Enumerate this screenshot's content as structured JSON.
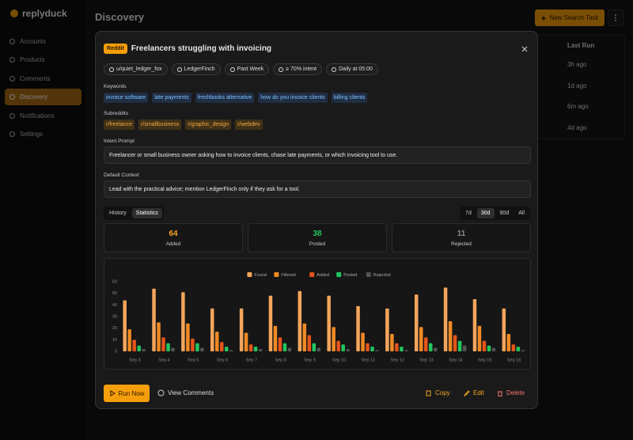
{
  "sidebar": {
    "brand": "replyduck",
    "nav": [
      "Accounts",
      "Products",
      "Comments",
      "Discovery",
      "Notifications",
      "Settings"
    ],
    "active": "Discovery"
  },
  "header": {
    "title": "Discovery",
    "new_button": "New Search Task"
  },
  "table": {
    "column": "Last Run",
    "rows": [
      "3h ago",
      "1d ago",
      "6m ago",
      "4d ago"
    ]
  },
  "modal": {
    "platform": "Reddit",
    "title": "Freelancers struggling with invoicing",
    "meta": [
      "u/quiet_ledger_fox",
      "LedgerFinch",
      "Past Week",
      "≥ 70% intent",
      "Daily at 05:00"
    ],
    "keywords_label": "Keywords",
    "keywords": [
      "invoice software",
      "late payments",
      "freshbooks alternative",
      "how do you invoice clients",
      "billing clients"
    ],
    "subreddits_label": "Subreddits",
    "subreddits": [
      "r/freelance",
      "r/smallbusiness",
      "r/graphic_design",
      "r/webdev"
    ],
    "intent_prompt": {
      "label": "Intent Prompt",
      "text": "Freelancer or small business owner asking how to invoice clients, chase late payments, or which invoicing tool to use."
    },
    "default_context": {
      "label": "Default Context",
      "text": "Lead with the practical advice; mention LedgerFinch only if they ask for a tool."
    },
    "tabs": [
      "History",
      "Statistics"
    ],
    "active_tab": "Statistics",
    "ranges": [
      "7d",
      "30d",
      "90d",
      "All"
    ],
    "active_range": "30d",
    "stats": [
      {
        "value": 64,
        "label": "Added",
        "color": "#f5a524"
      },
      {
        "value": 38,
        "label": "Posted",
        "color": "#22c55e"
      },
      {
        "value": 11,
        "label": "Rejected",
        "color": "#8a8a8a"
      }
    ],
    "footer": {
      "run": "Run Now",
      "view": "View Comments",
      "copy": "Copy",
      "edit": "Edit",
      "delete": "Delete"
    }
  },
  "chart_data": {
    "type": "bar",
    "categories": [
      "Sep 3",
      "Sep 4",
      "Sep 5",
      "Sep 6",
      "Sep 7",
      "Sep 8",
      "Sep 9",
      "Sep 10",
      "Sep 11",
      "Sep 12",
      "Sep 13",
      "Sep 14",
      "Sep 15",
      "Sep 16"
    ],
    "series": [
      {
        "name": "Found",
        "color": "#f4a55c",
        "values": [
          44,
          54,
          51,
          37,
          37,
          48,
          52,
          48,
          39,
          37,
          49,
          55,
          45,
          37
        ]
      },
      {
        "name": "Filtered",
        "color": "#f08a24",
        "values": [
          19,
          25,
          24,
          17,
          16,
          22,
          24,
          21,
          16,
          15,
          21,
          26,
          22,
          15
        ]
      },
      {
        "name": "Added",
        "color": "#e4541b",
        "values": [
          10,
          12,
          11,
          8,
          6,
          12,
          14,
          9,
          7,
          7,
          12,
          14,
          9,
          6
        ]
      },
      {
        "name": "Posted",
        "color": "#22c55e",
        "values": [
          5,
          7,
          7,
          4,
          4,
          7,
          7,
          6,
          4,
          4,
          7,
          9,
          5,
          4
        ]
      },
      {
        "name": "Rejected",
        "color": "#555555",
        "values": [
          2,
          3,
          3,
          1,
          2,
          3,
          3,
          2,
          1,
          1,
          3,
          5,
          3,
          1
        ]
      }
    ],
    "ylim": [
      0,
      60
    ],
    "yticks": [
      0,
      10,
      20,
      30,
      40,
      50,
      60
    ],
    "grid": false,
    "legend": "top"
  }
}
